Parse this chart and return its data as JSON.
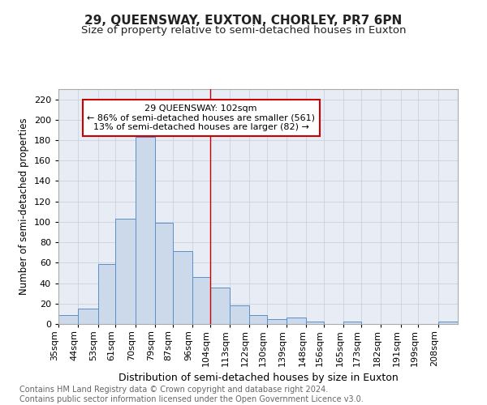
{
  "title": "29, QUEENSWAY, EUXTON, CHORLEY, PR7 6PN",
  "subtitle": "Size of property relative to semi-detached houses in Euxton",
  "xlabel": "Distribution of semi-detached houses by size in Euxton",
  "ylabel": "Number of semi-detached properties",
  "footnote": "Contains HM Land Registry data © Crown copyright and database right 2024.\nContains public sector information licensed under the Open Government Licence v3.0.",
  "categories": [
    "35sqm",
    "44sqm",
    "53sqm",
    "61sqm",
    "70sqm",
    "79sqm",
    "87sqm",
    "96sqm",
    "104sqm",
    "113sqm",
    "122sqm",
    "130sqm",
    "139sqm",
    "148sqm",
    "156sqm",
    "165sqm",
    "173sqm",
    "182sqm",
    "191sqm",
    "199sqm",
    "208sqm"
  ],
  "values": [
    9,
    15,
    59,
    103,
    183,
    99,
    71,
    46,
    36,
    18,
    9,
    5,
    6,
    2,
    0,
    2,
    0,
    0,
    0,
    0,
    2
  ],
  "bar_color": "#ccd9ea",
  "bar_edge_color": "#5b8fc9",
  "grid_color": "#c5cdd8",
  "background_color": "#e8edf5",
  "annotation_line1": "29 QUEENSWAY: 102sqm",
  "annotation_line2": "← 86% of semi-detached houses are smaller (561)",
  "annotation_line3": "13% of semi-detached houses are larger (82) →",
  "annotation_box_color": "#ffffff",
  "annotation_box_edge_color": "#cc0000",
  "vline_x": 104,
  "vline_color": "#cc0000",
  "bin_edges": [
    35,
    44,
    53,
    61,
    70,
    79,
    87,
    96,
    104,
    113,
    122,
    130,
    139,
    148,
    156,
    165,
    173,
    182,
    191,
    199,
    208,
    217
  ],
  "ylim": [
    0,
    230
  ],
  "yticks": [
    0,
    20,
    40,
    60,
    80,
    100,
    120,
    140,
    160,
    180,
    200,
    220
  ],
  "title_fontsize": 11,
  "subtitle_fontsize": 9.5,
  "xlabel_fontsize": 9,
  "ylabel_fontsize": 8.5,
  "tick_fontsize": 8,
  "annotation_fontsize": 8,
  "footnote_fontsize": 7
}
